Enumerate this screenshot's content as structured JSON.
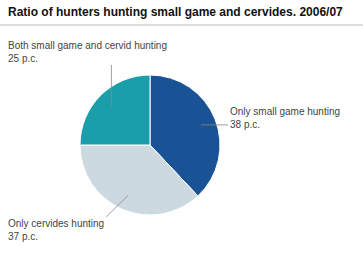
{
  "chart_data": {
    "type": "pie",
    "title": "Ratio of hunters hunting small game and cervides. 2006/07",
    "categories": [
      "Only small game hunting",
      "Only cervides hunting",
      "Both small game and cervid hunting"
    ],
    "values": [
      38,
      37,
      25
    ],
    "value_labels": [
      "38 p.c.",
      "37 p.c.",
      "25 p.c."
    ],
    "colors": [
      "#1a5296",
      "#ccd9e0",
      "#1a9eaa"
    ],
    "data_labels": true
  }
}
